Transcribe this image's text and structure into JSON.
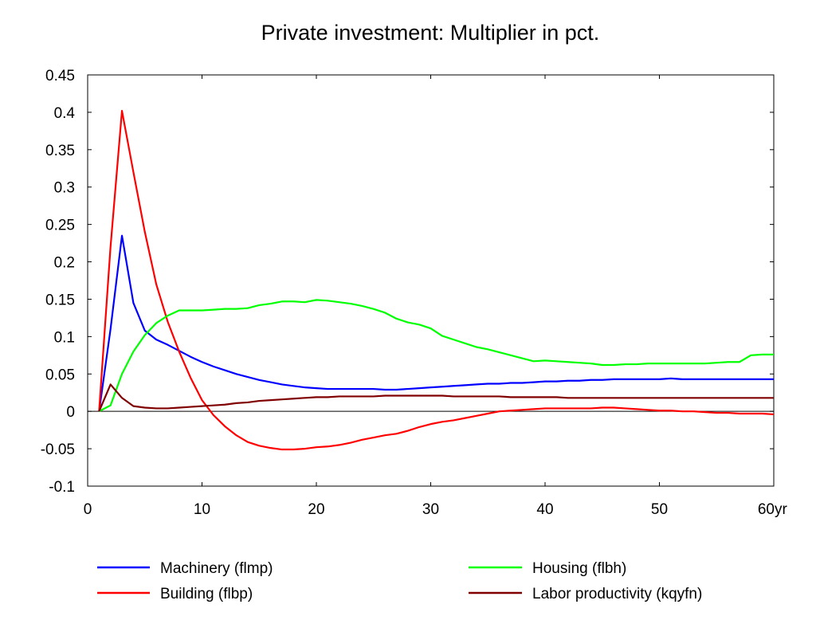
{
  "chart_data": {
    "type": "line",
    "title": "Private investment: Multiplier in pct.",
    "x_unit_label": "yr",
    "xlim": [
      0,
      60
    ],
    "ylim": [
      -0.1,
      0.45
    ],
    "x_ticks": [
      0,
      10,
      20,
      30,
      40,
      50,
      60
    ],
    "x_tick_labels": [
      "0",
      "10",
      "20",
      "30",
      "40",
      "50",
      "60"
    ],
    "y_ticks": [
      -0.1,
      -0.05,
      0,
      0.05,
      0.1,
      0.15,
      0.2,
      0.25,
      0.3,
      0.35,
      0.4,
      0.45
    ],
    "y_tick_labels": [
      "-0.1",
      "-0.05",
      "0",
      "0.05",
      "0.1",
      "0.15",
      "0.2",
      "0.25",
      "0.3",
      "0.35",
      "0.4",
      "0.45"
    ],
    "grid": false,
    "zero_line": true,
    "legend_position": "bottom",
    "x": [
      1,
      2,
      3,
      4,
      5,
      6,
      7,
      8,
      9,
      10,
      11,
      12,
      13,
      14,
      15,
      16,
      17,
      18,
      19,
      20,
      21,
      22,
      23,
      24,
      25,
      26,
      27,
      28,
      29,
      30,
      31,
      32,
      33,
      34,
      35,
      36,
      37,
      38,
      39,
      40,
      41,
      42,
      43,
      44,
      45,
      46,
      47,
      48,
      49,
      50,
      51,
      52,
      53,
      54,
      55,
      56,
      57,
      58,
      59,
      60
    ],
    "series": [
      {
        "name": "Machinery (flmp)",
        "color": "#0000ff",
        "values": [
          0.0,
          0.11,
          0.235,
          0.145,
          0.108,
          0.096,
          0.089,
          0.081,
          0.073,
          0.066,
          0.06,
          0.055,
          0.05,
          0.046,
          0.042,
          0.039,
          0.036,
          0.034,
          0.032,
          0.031,
          0.03,
          0.03,
          0.03,
          0.03,
          0.03,
          0.029,
          0.029,
          0.03,
          0.031,
          0.032,
          0.033,
          0.034,
          0.035,
          0.036,
          0.037,
          0.037,
          0.038,
          0.038,
          0.039,
          0.04,
          0.04,
          0.041,
          0.041,
          0.042,
          0.042,
          0.043,
          0.043,
          0.043,
          0.043,
          0.043,
          0.044,
          0.043,
          0.043,
          0.043,
          0.043,
          0.043,
          0.043,
          0.043,
          0.043,
          0.043
        ]
      },
      {
        "name": "Building (flbp)",
        "color": "#ff0000",
        "values": [
          0.0,
          0.22,
          0.402,
          0.32,
          0.24,
          0.17,
          0.12,
          0.08,
          0.045,
          0.015,
          -0.005,
          -0.02,
          -0.032,
          -0.041,
          -0.046,
          -0.049,
          -0.051,
          -0.051,
          -0.05,
          -0.048,
          -0.047,
          -0.045,
          -0.042,
          -0.038,
          -0.035,
          -0.032,
          -0.03,
          -0.026,
          -0.021,
          -0.017,
          -0.014,
          -0.012,
          -0.009,
          -0.006,
          -0.003,
          0.0,
          0.001,
          0.002,
          0.003,
          0.004,
          0.004,
          0.004,
          0.004,
          0.004,
          0.005,
          0.005,
          0.004,
          0.003,
          0.002,
          0.001,
          0.001,
          0.0,
          0.0,
          -0.001,
          -0.002,
          -0.002,
          -0.003,
          -0.003,
          -0.003,
          -0.004
        ]
      },
      {
        "name": "Housing (flbh)",
        "color": "#00ff00",
        "values": [
          0.0,
          0.008,
          0.05,
          0.08,
          0.102,
          0.118,
          0.128,
          0.135,
          0.135,
          0.135,
          0.136,
          0.137,
          0.137,
          0.138,
          0.142,
          0.144,
          0.147,
          0.147,
          0.146,
          0.149,
          0.148,
          0.146,
          0.144,
          0.141,
          0.137,
          0.132,
          0.124,
          0.119,
          0.116,
          0.111,
          0.101,
          0.096,
          0.091,
          0.086,
          0.083,
          0.079,
          0.075,
          0.071,
          0.067,
          0.068,
          0.067,
          0.066,
          0.065,
          0.064,
          0.062,
          0.062,
          0.063,
          0.063,
          0.064,
          0.064,
          0.064,
          0.064,
          0.064,
          0.064,
          0.065,
          0.066,
          0.066,
          0.075,
          0.076,
          0.076
        ]
      },
      {
        "name": "Labor productivity (kqyfn)",
        "color": "#800000",
        "values": [
          0.0,
          0.036,
          0.018,
          0.007,
          0.005,
          0.004,
          0.004,
          0.005,
          0.006,
          0.007,
          0.008,
          0.009,
          0.011,
          0.012,
          0.014,
          0.015,
          0.016,
          0.017,
          0.018,
          0.019,
          0.019,
          0.02,
          0.02,
          0.02,
          0.02,
          0.021,
          0.021,
          0.021,
          0.021,
          0.021,
          0.021,
          0.02,
          0.02,
          0.02,
          0.02,
          0.02,
          0.019,
          0.019,
          0.019,
          0.019,
          0.019,
          0.018,
          0.018,
          0.018,
          0.018,
          0.018,
          0.018,
          0.018,
          0.018,
          0.018,
          0.018,
          0.018,
          0.018,
          0.018,
          0.018,
          0.018,
          0.018,
          0.018,
          0.018,
          0.018
        ]
      }
    ]
  }
}
